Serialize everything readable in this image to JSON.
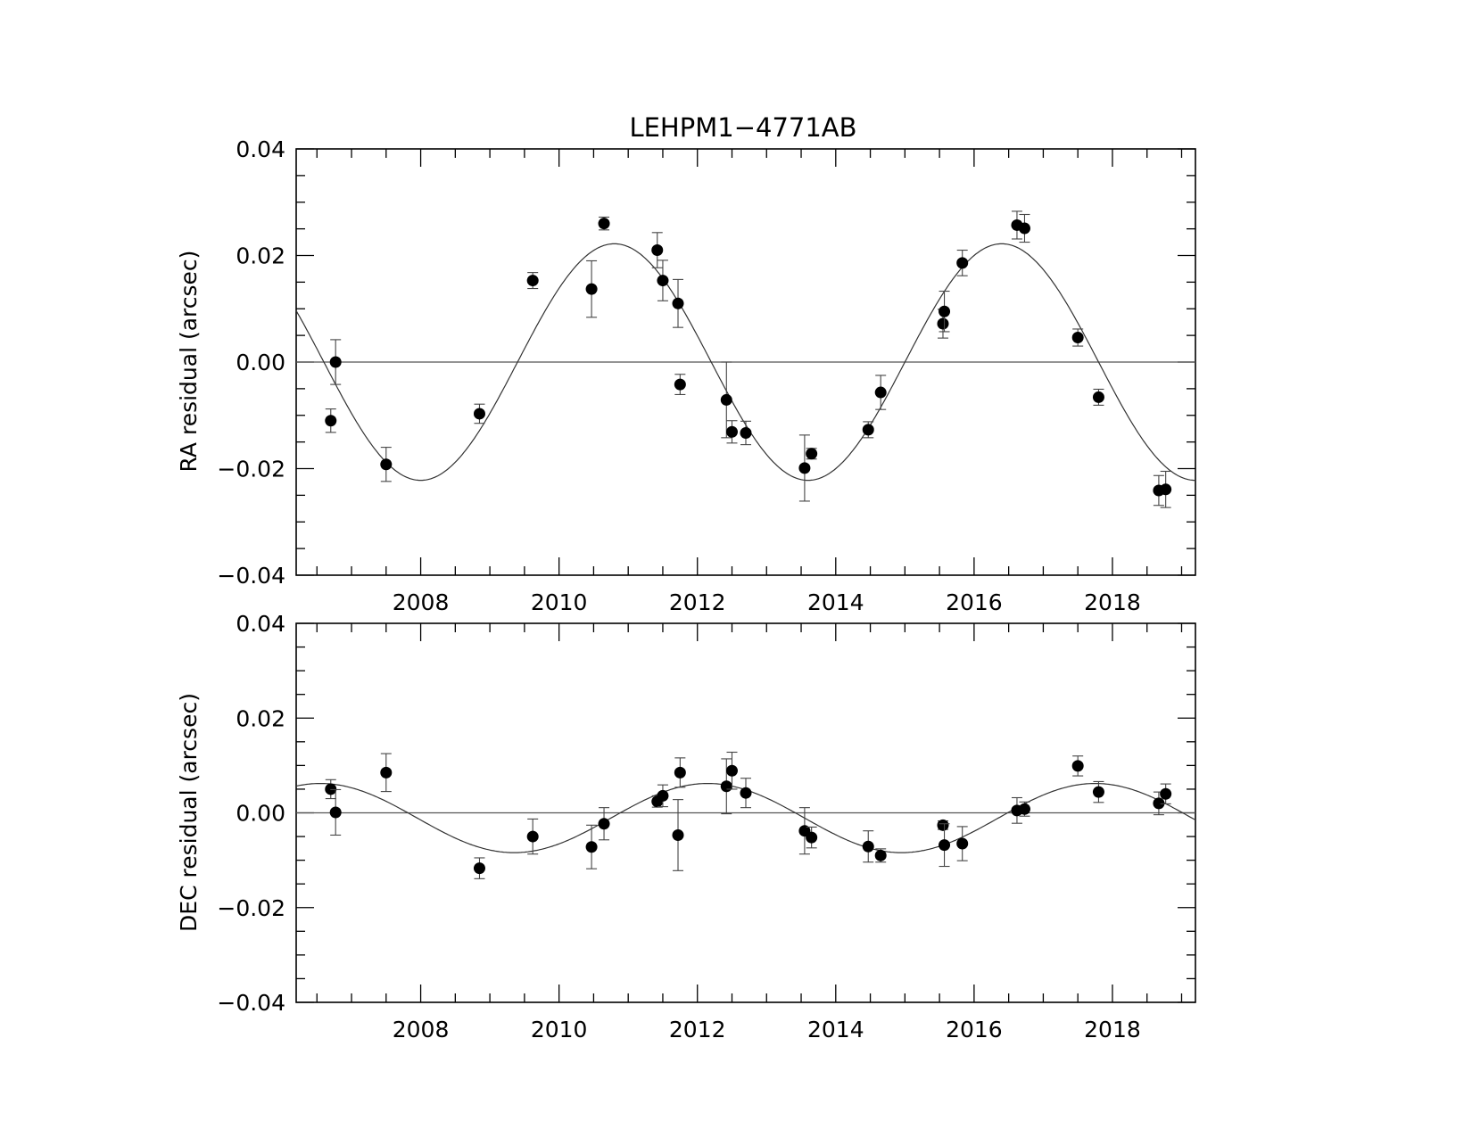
{
  "chart_data": [
    {
      "type": "scatter",
      "title": "LEHPM1−4771AB",
      "xlabel": "",
      "ylabel": "RA residual (arcsec)",
      "xlim": [
        2006.2,
        2019.2
      ],
      "ylim": [
        -0.04,
        0.04
      ],
      "xticks": [
        2008,
        2010,
        2012,
        2014,
        2016,
        2018
      ],
      "xtick_labels": [
        "2008",
        "2010",
        "2012",
        "2014",
        "2016",
        "2018"
      ],
      "yticks": [
        -0.04,
        -0.02,
        0.0,
        0.02,
        0.04
      ],
      "ytick_labels": [
        "−0.04",
        "−0.02",
        "0.00",
        "0.02",
        "0.04"
      ],
      "grid": false,
      "reference_line": 0.0,
      "model_curve": {
        "amplitude": 0.0222,
        "period_years": 5.6,
        "phase_year": 2009.4
      },
      "points": [
        {
          "x": 2006.7,
          "y": -0.011,
          "err": 0.0022
        },
        {
          "x": 2006.77,
          "y": 0.0,
          "err": 0.0042
        },
        {
          "x": 2007.5,
          "y": -0.0192,
          "err": 0.0032
        },
        {
          "x": 2008.85,
          "y": -0.0097,
          "err": 0.0018
        },
        {
          "x": 2009.62,
          "y": 0.0153,
          "err": 0.0015
        },
        {
          "x": 2010.47,
          "y": 0.0137,
          "err": 0.0053
        },
        {
          "x": 2010.65,
          "y": 0.026,
          "err": 0.0012
        },
        {
          "x": 2011.42,
          "y": 0.021,
          "err": 0.0033
        },
        {
          "x": 2011.5,
          "y": 0.0153,
          "err": 0.0038
        },
        {
          "x": 2011.72,
          "y": 0.011,
          "err": 0.0045
        },
        {
          "x": 2011.75,
          "y": -0.0042,
          "err": 0.0019
        },
        {
          "x": 2012.42,
          "y": -0.0071,
          "err": 0.0071
        },
        {
          "x": 2012.5,
          "y": -0.0131,
          "err": 0.0021
        },
        {
          "x": 2012.7,
          "y": -0.0133,
          "err": 0.0022
        },
        {
          "x": 2013.55,
          "y": -0.0199,
          "err": 0.0062
        },
        {
          "x": 2013.65,
          "y": -0.0172,
          "err": 0.001
        },
        {
          "x": 2014.47,
          "y": -0.0127,
          "err": 0.0015
        },
        {
          "x": 2014.65,
          "y": -0.0057,
          "err": 0.0032
        },
        {
          "x": 2015.55,
          "y": 0.0072,
          "err": 0.0027
        },
        {
          "x": 2015.57,
          "y": 0.0095,
          "err": 0.0038
        },
        {
          "x": 2015.83,
          "y": 0.0186,
          "err": 0.0024
        },
        {
          "x": 2016.62,
          "y": 0.0257,
          "err": 0.0026
        },
        {
          "x": 2016.73,
          "y": 0.0251,
          "err": 0.0026
        },
        {
          "x": 2017.5,
          "y": 0.0046,
          "err": 0.0016
        },
        {
          "x": 2017.8,
          "y": -0.0066,
          "err": 0.0015
        },
        {
          "x": 2018.67,
          "y": -0.0241,
          "err": 0.0028
        },
        {
          "x": 2018.77,
          "y": -0.0239,
          "err": 0.0034
        }
      ]
    },
    {
      "type": "scatter",
      "title": "",
      "xlabel": "",
      "ylabel": "DEC residual (arcsec)",
      "xlim": [
        2006.2,
        2019.2
      ],
      "ylim": [
        -0.04,
        0.04
      ],
      "xticks": [
        2008,
        2010,
        2012,
        2014,
        2016,
        2018
      ],
      "xtick_labels": [
        "2008",
        "2010",
        "2012",
        "2014",
        "2016",
        "2018"
      ],
      "yticks": [
        -0.04,
        -0.02,
        0.0,
        0.02,
        0.04
      ],
      "ytick_labels": [
        "−0.04",
        "−0.02",
        "0.00",
        "0.02",
        "0.04"
      ],
      "grid": false,
      "reference_line": 0.0,
      "model_curve": {
        "amplitude": 0.0073,
        "period_years": 5.6,
        "offset": -0.0011,
        "peak_year": 2006.55
      },
      "points": [
        {
          "x": 2006.7,
          "y": 0.005,
          "err": 0.002
        },
        {
          "x": 2006.77,
          "y": 0.0001,
          "err": 0.0048
        },
        {
          "x": 2007.5,
          "y": 0.0085,
          "err": 0.004
        },
        {
          "x": 2008.85,
          "y": -0.0117,
          "err": 0.0022
        },
        {
          "x": 2009.62,
          "y": -0.005,
          "err": 0.0037
        },
        {
          "x": 2010.47,
          "y": -0.0072,
          "err": 0.0046
        },
        {
          "x": 2010.65,
          "y": -0.0023,
          "err": 0.0034
        },
        {
          "x": 2011.42,
          "y": 0.0024,
          "err": 0.0012
        },
        {
          "x": 2011.5,
          "y": 0.0036,
          "err": 0.0023
        },
        {
          "x": 2011.72,
          "y": -0.0047,
          "err": 0.0075
        },
        {
          "x": 2011.75,
          "y": 0.0085,
          "err": 0.0031
        },
        {
          "x": 2012.42,
          "y": 0.0056,
          "err": 0.0058
        },
        {
          "x": 2012.5,
          "y": 0.0089,
          "err": 0.0039
        },
        {
          "x": 2012.7,
          "y": 0.0042,
          "err": 0.0031
        },
        {
          "x": 2013.55,
          "y": -0.0038,
          "err": 0.0049
        },
        {
          "x": 2013.65,
          "y": -0.0052,
          "err": 0.0022
        },
        {
          "x": 2014.47,
          "y": -0.0071,
          "err": 0.0033
        },
        {
          "x": 2014.65,
          "y": -0.009,
          "err": 0.0014
        },
        {
          "x": 2015.55,
          "y": -0.0026,
          "err": 0.0009
        },
        {
          "x": 2015.57,
          "y": -0.0068,
          "err": 0.0045
        },
        {
          "x": 2015.83,
          "y": -0.0065,
          "err": 0.0036
        },
        {
          "x": 2016.62,
          "y": 0.0005,
          "err": 0.0027
        },
        {
          "x": 2016.73,
          "y": 0.0008,
          "err": 0.0015
        },
        {
          "x": 2017.5,
          "y": 0.0099,
          "err": 0.0021
        },
        {
          "x": 2017.8,
          "y": 0.0044,
          "err": 0.0022
        },
        {
          "x": 2018.67,
          "y": 0.002,
          "err": 0.0024
        },
        {
          "x": 2018.77,
          "y": 0.004,
          "err": 0.0021
        }
      ]
    }
  ]
}
